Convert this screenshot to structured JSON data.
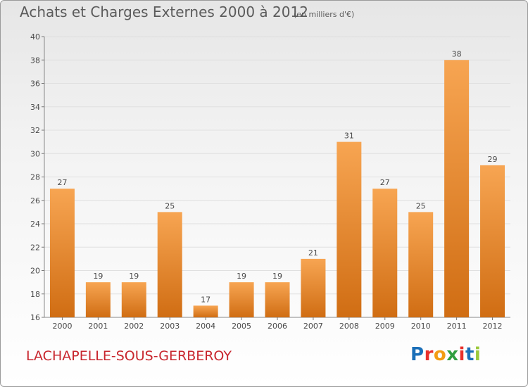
{
  "header": {
    "title": "Achats et Charges Externes 2000 à 2012",
    "subtitle": "(en milliers d'€)"
  },
  "footer": {
    "commune": "LACHAPELLE-SOUS-GERBEROY",
    "logo_letters": [
      "P",
      "r",
      "o",
      "x",
      "i",
      "t",
      "i"
    ],
    "logo_colors": [
      "#1b6fb8",
      "#e9302b",
      "#f39c12",
      "#2f9e3f",
      "#e9302b",
      "#1b6fb8",
      "#9bc93b"
    ]
  },
  "colors": {
    "bar_top": "#f7a552",
    "bar_bottom": "#d06d13",
    "axis_text": "#4a4a4a",
    "grid": "#e0e0e0"
  },
  "chart_data": {
    "type": "bar",
    "categories": [
      "2000",
      "2001",
      "2002",
      "2003",
      "2004",
      "2005",
      "2006",
      "2007",
      "2008",
      "2009",
      "2010",
      "2011",
      "2012"
    ],
    "values": [
      27,
      19,
      19,
      25,
      17,
      19,
      19,
      21,
      31,
      27,
      25,
      38,
      29
    ],
    "ylim": [
      16,
      40
    ],
    "yticks": [
      "16",
      "18",
      "20",
      "22",
      "24",
      "26",
      "28",
      "30",
      "32",
      "34",
      "36",
      "38",
      "40"
    ],
    "data_labels": [
      "27",
      "19",
      "19",
      "25",
      "17",
      "19",
      "19",
      "21",
      "31",
      "27",
      "25",
      "38",
      "29"
    ],
    "grid": "horizontal"
  }
}
